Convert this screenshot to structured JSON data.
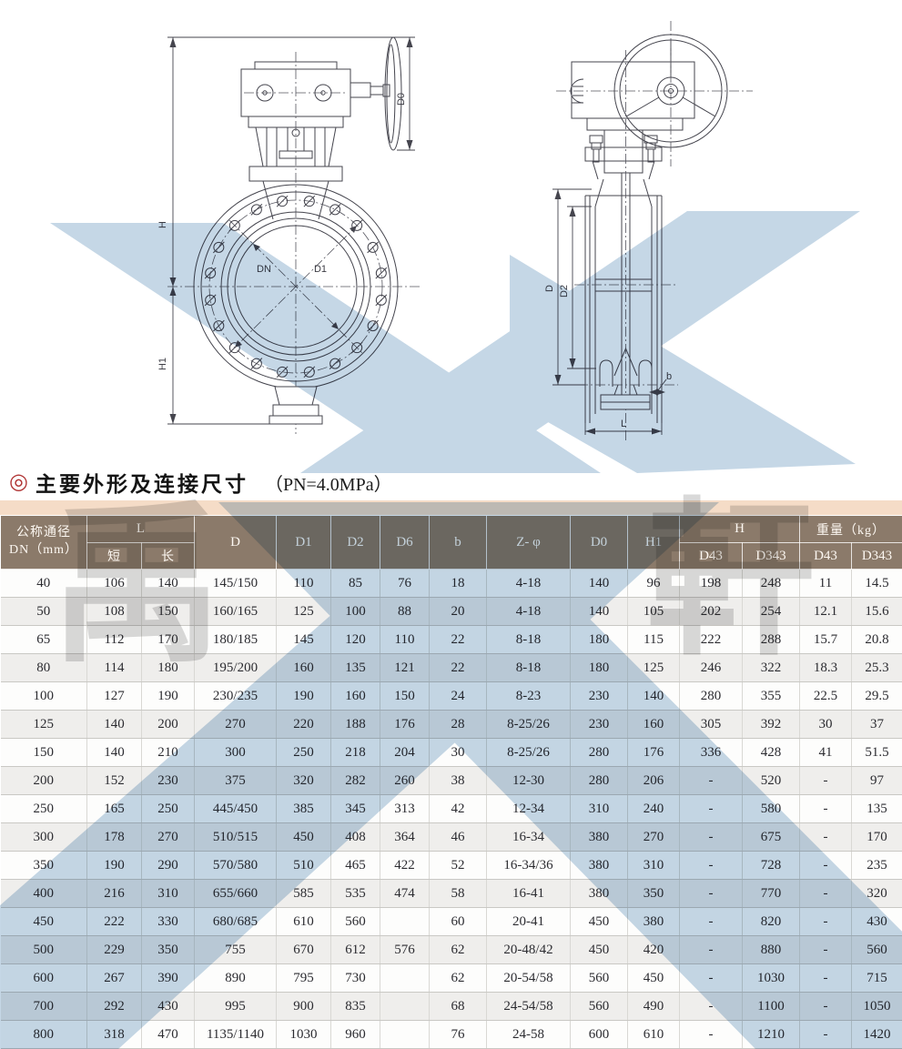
{
  "title": {
    "bullet": "◎",
    "text": "主要外形及连接尺寸",
    "note": "（PN=4.0MPa）"
  },
  "drawings": {
    "front_view": {
      "labels": {
        "h": "H",
        "h1": "H1",
        "dn": "DN",
        "d1": "D1",
        "d0": "D0"
      }
    },
    "side_view": {
      "labels": {
        "d": "D",
        "d2": "D2",
        "l": "L",
        "b": "b"
      }
    }
  },
  "watermark": {
    "chars": [
      "禹",
      "軒"
    ],
    "blue": "#c5d7e6"
  },
  "colors": {
    "header_brown": "#8b7a6a",
    "band_pink": "#f5dcc7",
    "accent_red": "#b03434"
  },
  "table": {
    "header": {
      "dn_line1": "公称通径",
      "dn_line2": "DN（mm）",
      "l": "L",
      "l_short": "短",
      "l_long": "长",
      "d": "D",
      "d1": "D1",
      "d2": "D2",
      "d6": "D6",
      "b": "b",
      "z_phi": "Z- φ",
      "d0": "D0",
      "h1": "H1",
      "h": "H",
      "weight": "重量（kg）",
      "d43": "D43",
      "d343": "D343"
    },
    "rows": [
      [
        "40",
        "106",
        "140",
        "145/150",
        "110",
        "85",
        "76",
        "18",
        "4-18",
        "140",
        "96",
        "198",
        "248",
        "11",
        "14.5"
      ],
      [
        "50",
        "108",
        "150",
        "160/165",
        "125",
        "100",
        "88",
        "20",
        "4-18",
        "140",
        "105",
        "202",
        "254",
        "12.1",
        "15.6"
      ],
      [
        "65",
        "112",
        "170",
        "180/185",
        "145",
        "120",
        "110",
        "22",
        "8-18",
        "180",
        "115",
        "222",
        "288",
        "15.7",
        "20.8"
      ],
      [
        "80",
        "114",
        "180",
        "195/200",
        "160",
        "135",
        "121",
        "22",
        "8-18",
        "180",
        "125",
        "246",
        "322",
        "18.3",
        "25.3"
      ],
      [
        "100",
        "127",
        "190",
        "230/235",
        "190",
        "160",
        "150",
        "24",
        "8-23",
        "230",
        "140",
        "280",
        "355",
        "22.5",
        "29.5"
      ],
      [
        "125",
        "140",
        "200",
        "270",
        "220",
        "188",
        "176",
        "28",
        "8-25/26",
        "230",
        "160",
        "305",
        "392",
        "30",
        "37"
      ],
      [
        "150",
        "140",
        "210",
        "300",
        "250",
        "218",
        "204",
        "30",
        "8-25/26",
        "280",
        "176",
        "336",
        "428",
        "41",
        "51.5"
      ],
      [
        "200",
        "152",
        "230",
        "375",
        "320",
        "282",
        "260",
        "38",
        "12-30",
        "280",
        "206",
        "-",
        "520",
        "-",
        "97"
      ],
      [
        "250",
        "165",
        "250",
        "445/450",
        "385",
        "345",
        "313",
        "42",
        "12-34",
        "310",
        "240",
        "-",
        "580",
        "-",
        "135"
      ],
      [
        "300",
        "178",
        "270",
        "510/515",
        "450",
        "408",
        "364",
        "46",
        "16-34",
        "380",
        "270",
        "-",
        "675",
        "-",
        "170"
      ],
      [
        "350",
        "190",
        "290",
        "570/580",
        "510",
        "465",
        "422",
        "52",
        "16-34/36",
        "380",
        "310",
        "-",
        "728",
        "-",
        "235"
      ],
      [
        "400",
        "216",
        "310",
        "655/660",
        "585",
        "535",
        "474",
        "58",
        "16-41",
        "380",
        "350",
        "-",
        "770",
        "-",
        "320"
      ],
      [
        "450",
        "222",
        "330",
        "680/685",
        "610",
        "560",
        "",
        "60",
        "20-41",
        "450",
        "380",
        "-",
        "820",
        "-",
        "430"
      ],
      [
        "500",
        "229",
        "350",
        "755",
        "670",
        "612",
        "576",
        "62",
        "20-48/42",
        "450",
        "420",
        "-",
        "880",
        "-",
        "560"
      ],
      [
        "600",
        "267",
        "390",
        "890",
        "795",
        "730",
        "",
        "62",
        "20-54/58",
        "560",
        "450",
        "-",
        "1030",
        "-",
        "715"
      ],
      [
        "700",
        "292",
        "430",
        "995",
        "900",
        "835",
        "",
        "68",
        "24-54/58",
        "560",
        "490",
        "-",
        "1100",
        "-",
        "1050"
      ],
      [
        "800",
        "318",
        "470",
        "1135/1140",
        "1030",
        "960",
        "",
        "76",
        "24-58",
        "600",
        "610",
        "-",
        "1210",
        "-",
        "1420"
      ]
    ]
  }
}
